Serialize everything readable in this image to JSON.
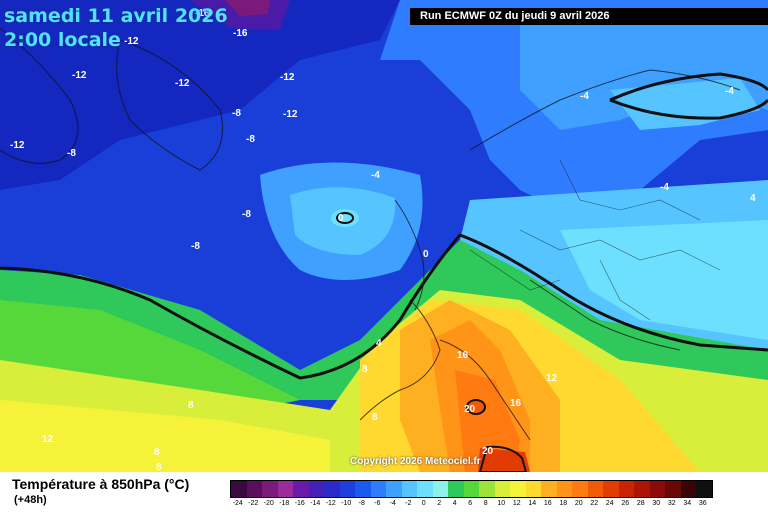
{
  "header": {
    "date_line": "samedi 11 avril 2026",
    "time_line": "2:00 locale",
    "run": "Run ECMWF 0Z du jeudi 9 avril 2026"
  },
  "footer": {
    "title": "Température à 850hPa (°C)",
    "lead_time": "(+48h)",
    "copyright": "Copyright 2026 Meteociel.fr"
  },
  "legend": {
    "labels": [
      "-24",
      "-22",
      "-20",
      "-18",
      "-16",
      "-14",
      "-12",
      "-10",
      "-8",
      "-6",
      "-4",
      "-2",
      "0",
      "2",
      "4",
      "6",
      "8",
      "10",
      "12",
      "14",
      "16",
      "18",
      "20",
      "22",
      "24",
      "26",
      "28",
      "30",
      "32",
      "34",
      "36"
    ],
    "colors": [
      "#3a0a3e",
      "#5c0e5e",
      "#7a1a7a",
      "#9b2a9a",
      "#6a1aa8",
      "#4420b8",
      "#2a2ac8",
      "#1f3fdc",
      "#1a5aee",
      "#2f7cff",
      "#3fa0ff",
      "#55c4ff",
      "#6ee0ff",
      "#8ef0e8",
      "#2fc85a",
      "#56d83a",
      "#9ce43a",
      "#d8ee3a",
      "#f6f23a",
      "#ffd830",
      "#ffb020",
      "#ff9418",
      "#ff7a10",
      "#f25a08",
      "#e03c04",
      "#c82404",
      "#ae1404",
      "#8c0a0a",
      "#6a0808",
      "#3a0404",
      "#101010"
    ]
  },
  "contour_labels": [
    {
      "text": "-16",
      "id": "a"
    },
    {
      "text": "-16",
      "id": "b"
    },
    {
      "text": "-12",
      "id": "c"
    },
    {
      "text": "-12",
      "id": "d"
    },
    {
      "text": "-12",
      "id": "e"
    },
    {
      "text": "-12",
      "id": "f"
    },
    {
      "text": "-12",
      "id": "g"
    },
    {
      "text": "-12",
      "id": "h"
    },
    {
      "text": "-8",
      "id": "i"
    },
    {
      "text": "-8",
      "id": "j"
    },
    {
      "text": "-8",
      "id": "k"
    },
    {
      "text": "-8",
      "id": "l"
    },
    {
      "text": "-8",
      "id": "m"
    },
    {
      "text": "-4",
      "id": "n"
    },
    {
      "text": "-4",
      "id": "o"
    },
    {
      "text": "-4",
      "id": "p"
    },
    {
      "text": "-4",
      "id": "q"
    },
    {
      "text": "0",
      "id": "r"
    },
    {
      "text": "0",
      "id": "s"
    },
    {
      "text": "4",
      "id": "t"
    },
    {
      "text": "4",
      "id": "u"
    },
    {
      "text": "8",
      "id": "v"
    },
    {
      "text": "8",
      "id": "w"
    },
    {
      "text": "8",
      "id": "x"
    },
    {
      "text": "8",
      "id": "y"
    },
    {
      "text": "8",
      "id": "z"
    },
    {
      "text": "12",
      "id": "aa"
    },
    {
      "text": "12",
      "id": "ab"
    },
    {
      "text": "16",
      "id": "ac"
    },
    {
      "text": "16",
      "id": "ad"
    },
    {
      "text": "20",
      "id": "ae"
    },
    {
      "text": "20",
      "id": "af"
    }
  ]
}
